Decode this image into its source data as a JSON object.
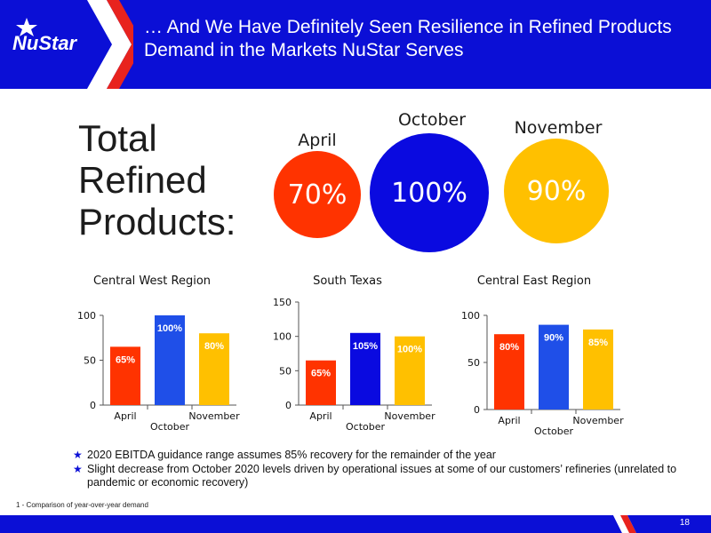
{
  "header": {
    "logo_text": "NuStar",
    "title": "… And We Have Definitely Seen Resilience in Refined Products Demand in the Markets NuStar Serves"
  },
  "summary": {
    "label": "Total Refined Products:",
    "months": [
      {
        "name": "April",
        "value": "70%",
        "color": "#ff3300"
      },
      {
        "name": "October",
        "value": "100%",
        "color": "#0a0ae0"
      },
      {
        "name": "November",
        "value": "90%",
        "color": "#ffc000"
      }
    ]
  },
  "chart_data": [
    {
      "type": "bar",
      "title": "Central West Region",
      "categories": [
        "April",
        "October",
        "November"
      ],
      "values": [
        65,
        100,
        80
      ],
      "data_labels": [
        "65%",
        "100%",
        "80%"
      ],
      "colors": [
        "#ff3300",
        "#1f4fe8",
        "#ffc000"
      ],
      "yticks": [
        0,
        50,
        100
      ],
      "ylim": [
        0,
        100
      ]
    },
    {
      "type": "bar",
      "title": "South Texas",
      "categories": [
        "April",
        "October",
        "November"
      ],
      "values": [
        65,
        105,
        100
      ],
      "data_labels": [
        "65%",
        "105%",
        "100%"
      ],
      "colors": [
        "#ff3300",
        "#0a0ae0",
        "#ffc000"
      ],
      "yticks": [
        0,
        50,
        100,
        150
      ],
      "ylim": [
        0,
        150
      ]
    },
    {
      "type": "bar",
      "title": "Central East Region",
      "categories": [
        "April",
        "October",
        "November"
      ],
      "values": [
        80,
        90,
        85
      ],
      "data_labels": [
        "80%",
        "90%",
        "85%"
      ],
      "colors": [
        "#ff3300",
        "#1f4fe8",
        "#ffc000"
      ],
      "yticks": [
        0,
        50,
        100
      ],
      "ylim": [
        0,
        100
      ]
    }
  ],
  "bullets": [
    "2020 EBITDA guidance range assumes 85% recovery for the remainder of the year",
    "Slight decrease from October 2020 levels driven by operational issues at some of our customers’ refineries (unrelated to pandemic or economic recovery)"
  ],
  "footnote": "1 - Comparison of year-over-year demand",
  "page_number": "18"
}
